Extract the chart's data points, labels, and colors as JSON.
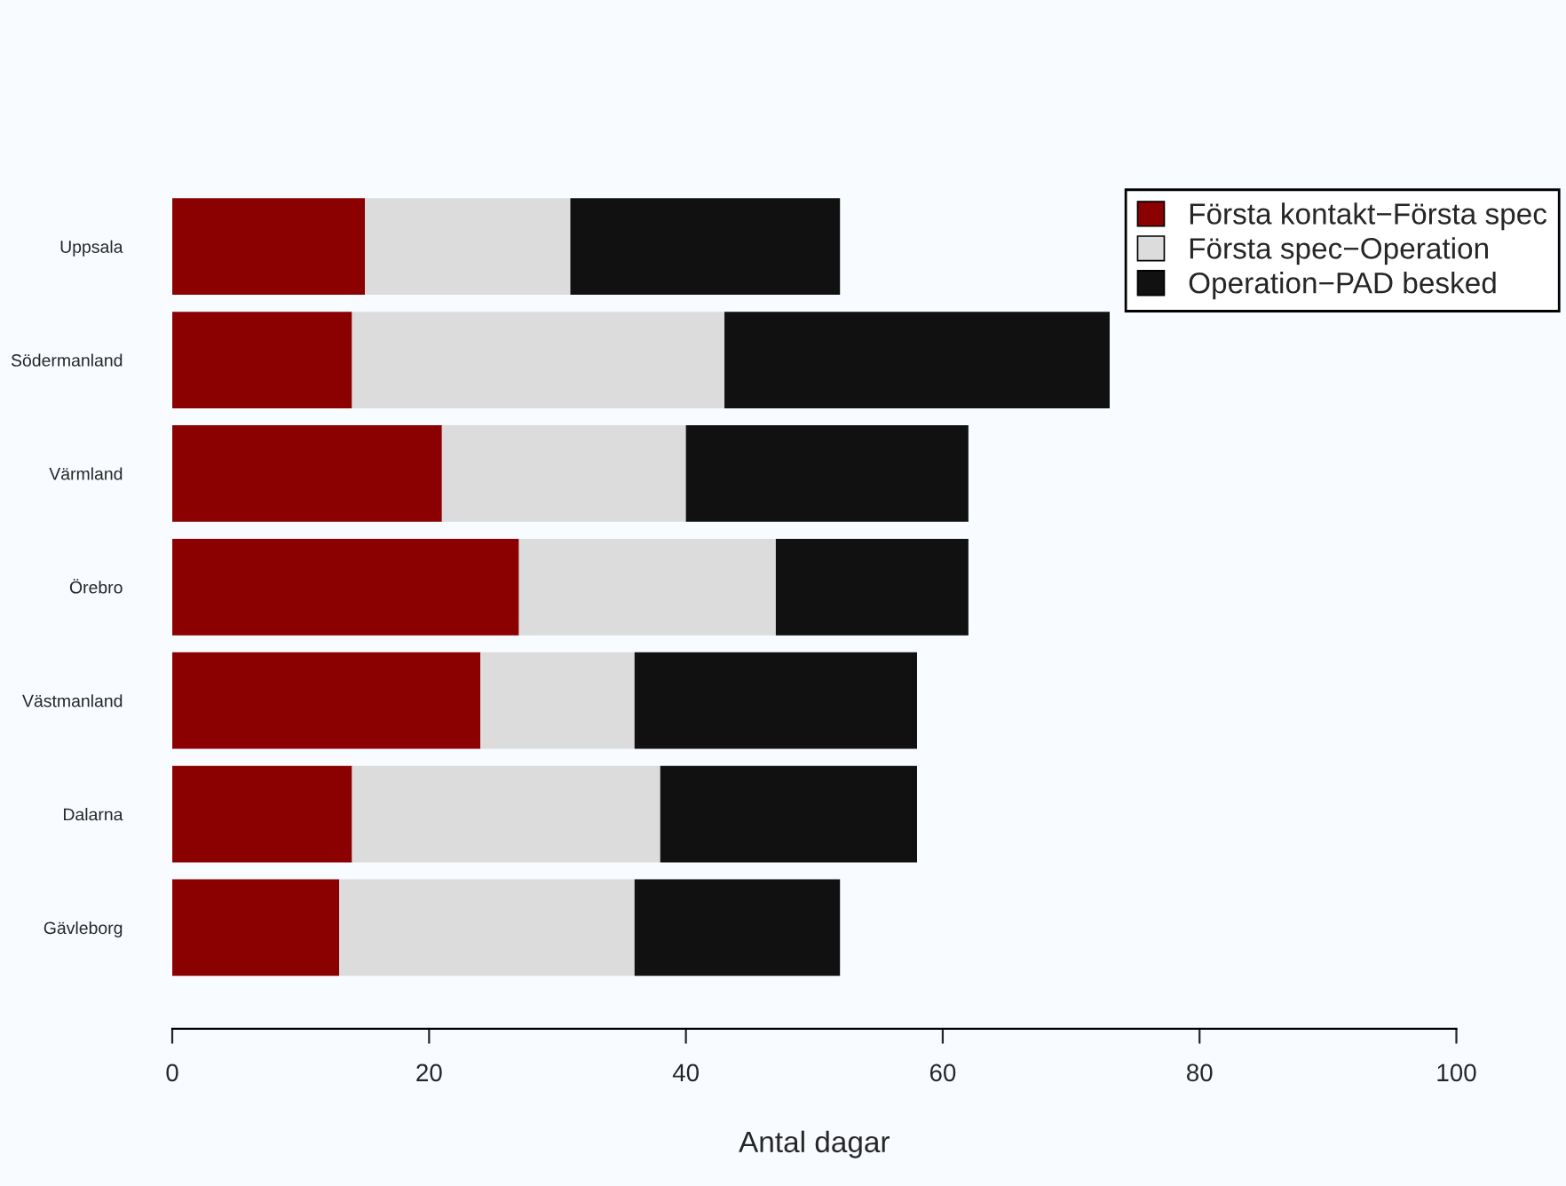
{
  "chart_data": {
    "type": "bar",
    "orientation": "horizontal",
    "stacked": true,
    "xlabel": "Antal dagar",
    "categories": [
      "Uppsala",
      "Södermanland",
      "Värmland",
      "Örebro",
      "Västmanland",
      "Dalarna",
      "Gävleborg"
    ],
    "series": [
      {
        "name": "Första kontakt−Första spec",
        "color": "#8b0000",
        "values": [
          15,
          14,
          21,
          27,
          24,
          14,
          13
        ]
      },
      {
        "name": "Första spec−Operation",
        "color": "#dcdcdc",
        "values": [
          16,
          29,
          19,
          20,
          12,
          24,
          23
        ]
      },
      {
        "name": "Operation−PAD besked",
        "color": "#111111",
        "values": [
          21,
          30,
          22,
          15,
          22,
          20,
          16
        ]
      }
    ],
    "xlim": [
      0,
      100
    ],
    "xticks": [
      0,
      20,
      40,
      60,
      80,
      100
    ],
    "grid": false,
    "legend": "top right"
  }
}
